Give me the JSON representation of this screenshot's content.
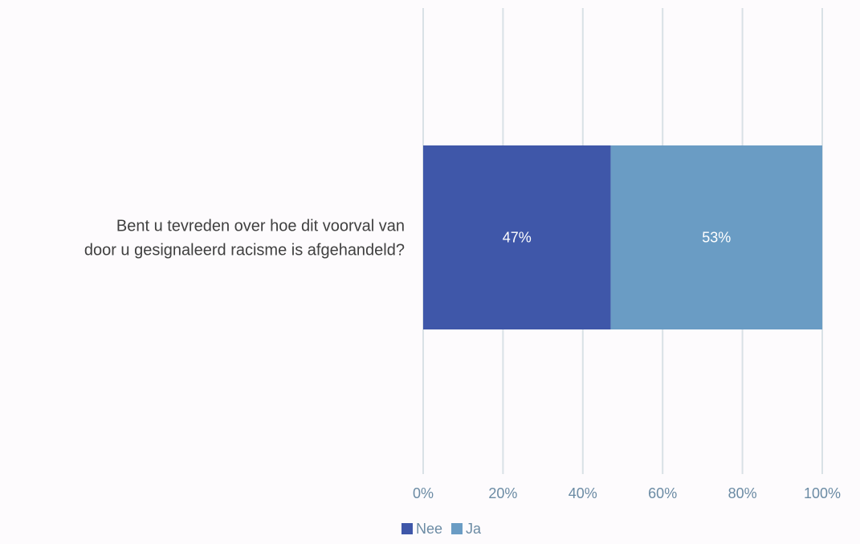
{
  "chart_data": {
    "type": "bar",
    "orientation": "horizontal",
    "stacked": "percent",
    "categories": [
      "Bent u tevreden over hoe dit voorval van door u gesignaleerd racisme is afgehandeld?"
    ],
    "category_lines": [
      "Bent u tevreden over hoe dit voorval van",
      "door u gesignaleerd racisme is afgehandeld?"
    ],
    "series": [
      {
        "name": "Nee",
        "values": [
          47
        ],
        "labels": [
          "47%"
        ],
        "color": "#3f57a9"
      },
      {
        "name": "Ja",
        "values": [
          53
        ],
        "labels": [
          "53%"
        ],
        "color": "#6a9cc4"
      }
    ],
    "xlim": [
      0,
      100
    ],
    "x_ticks": [
      "0%",
      "20%",
      "40%",
      "60%",
      "80%",
      "100%"
    ],
    "grid": true,
    "legend": "bottom",
    "title": "",
    "xlabel": "",
    "ylabel": ""
  },
  "colors": {
    "background": "#fdfbfd",
    "gridline": "#d9e1e6",
    "tick_text": "#6b8ba4",
    "category_text": "#404040",
    "data_label_text": "#ffffff"
  }
}
